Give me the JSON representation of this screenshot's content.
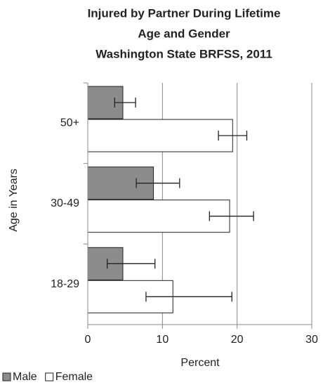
{
  "chart_data": {
    "type": "bar",
    "orientation": "horizontal",
    "title": [
      "Injured by Partner During Lifetime",
      "Age and Gender",
      "Washington State BRFSS, 2011"
    ],
    "x_label": "Percent",
    "y_label": "Age in Years",
    "categories": [
      "18-29",
      "30-49",
      "50+"
    ],
    "series": [
      {
        "name": "Male",
        "color": "#8c8c8c",
        "values": [
          4.7,
          8.8,
          4.7
        ],
        "lower": [
          2.6,
          6.5,
          3.6
        ],
        "upper": [
          9.0,
          12.3,
          6.4
        ]
      },
      {
        "name": "Female",
        "color": "#ffffff",
        "values": [
          11.4,
          19.0,
          19.4
        ],
        "lower": [
          7.8,
          16.3,
          17.5
        ],
        "upper": [
          19.3,
          22.2,
          21.3
        ]
      }
    ],
    "xlim": [
      0,
      30
    ],
    "xticks": [
      0,
      10,
      20,
      30
    ],
    "grid": true,
    "legend": "bottom-left"
  }
}
